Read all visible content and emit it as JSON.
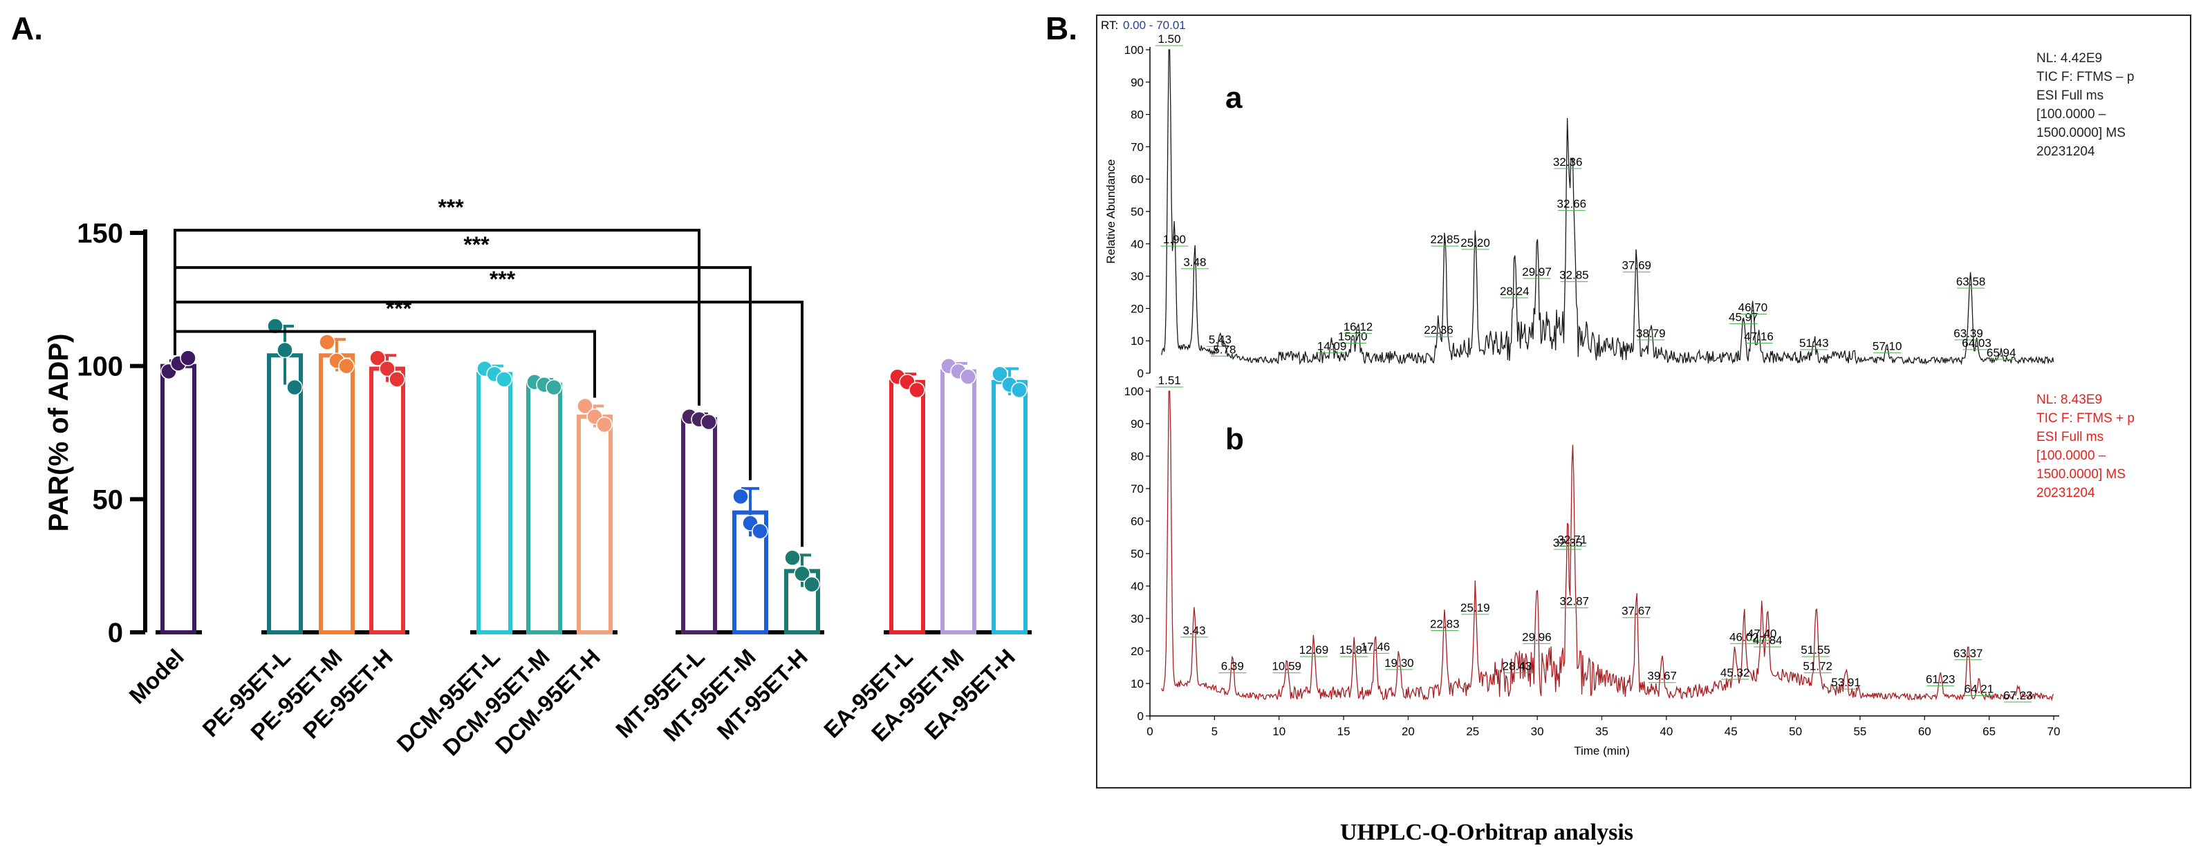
{
  "panel_a_label": "A.",
  "panel_b_label": "B.",
  "caption": "UHPLC-Q-Orbitrap analysis",
  "chart_data": [
    {
      "type": "bar",
      "title": "",
      "xlabel": "",
      "ylabel": "PAR(% of ADP)",
      "ylim": [
        0,
        150
      ],
      "yticks": [
        0,
        50,
        100,
        150
      ],
      "categories": [
        "Model",
        "PE-95ET-L",
        "PE-95ET-M",
        "PE-95ET-H",
        "DCM-95ET-L",
        "DCM-95ET-M",
        "DCM-95ET-H",
        "MT-95ET-L",
        "MT-95ET-M",
        "MT-95ET-H",
        "EA-95ET-L",
        "EA-95ET-M",
        "EA-95ET-H"
      ],
      "values": [
        100,
        104,
        104,
        99,
        97,
        93,
        81,
        80,
        45,
        23,
        94,
        98,
        94
      ],
      "errors": [
        2,
        11,
        6,
        5,
        3,
        2,
        4,
        2,
        9,
        6,
        3,
        3,
        5
      ],
      "points": [
        [
          98,
          101,
          103
        ],
        [
          115,
          106,
          92
        ],
        [
          109,
          102,
          100
        ],
        [
          103,
          99,
          95
        ],
        [
          99,
          97,
          95
        ],
        [
          94,
          93,
          92
        ],
        [
          85,
          81,
          78
        ],
        [
          81,
          80,
          79
        ],
        [
          51,
          41,
          38
        ],
        [
          28,
          22,
          18
        ],
        [
          96,
          94,
          91
        ],
        [
          100,
          98,
          96
        ],
        [
          97,
          93,
          91
        ]
      ],
      "colors": [
        "#3d1a5e",
        "#13797c",
        "#f0803a",
        "#e53535",
        "#2bc7d9",
        "#36aaa0",
        "#f4a07e",
        "#4a2566",
        "#1e5fd8",
        "#1b7b72",
        "#e8262e",
        "#b39ddd",
        "#2bb8de"
      ],
      "groups": [
        {
          "name": "PE",
          "members": [
            "PE-95ET-L",
            "PE-95ET-M",
            "PE-95ET-H"
          ]
        },
        {
          "name": "DCM",
          "members": [
            "DCM-95ET-L",
            "DCM-95ET-M",
            "DCM-95ET-H"
          ]
        },
        {
          "name": "MT",
          "members": [
            "MT-95ET-L",
            "MT-95ET-M",
            "MT-95ET-H"
          ]
        },
        {
          "name": "EA",
          "members": [
            "EA-95ET-L",
            "EA-95ET-M",
            "EA-95ET-H"
          ]
        }
      ],
      "significance": [
        {
          "from": "Model",
          "to": "MT-95ET-L",
          "label": "***",
          "level": 151
        },
        {
          "from": "Model",
          "to": "MT-95ET-M",
          "label": "***",
          "level": 137
        },
        {
          "from": "Model",
          "to": "MT-95ET-H",
          "label": "***",
          "level": 124
        },
        {
          "from": "Model",
          "to": "DCM-95ET-H",
          "label": "***",
          "level": 113
        }
      ]
    },
    {
      "type": "line",
      "title": "a",
      "rt_label": "RT:",
      "rt_range_text": "0.00 - 70.01",
      "ylabel": "Relative Abundance",
      "ylim": [
        0,
        100
      ],
      "xlim": [
        0,
        70
      ],
      "yticks": [
        0,
        10,
        20,
        30,
        40,
        50,
        60,
        70,
        80,
        90,
        100
      ],
      "info_lines": [
        "NL: 4.42E9",
        "TIC F: FTMS – p",
        "ESI Full ms",
        "[100.0000 –",
        "1500.0000] MS",
        "20231204"
      ],
      "info_color": "#222222",
      "line_color": "#1a1a1a",
      "peaks": [
        {
          "x": 1.5,
          "y": 100,
          "label": "1.50"
        },
        {
          "x": 1.9,
          "y": 38,
          "label": "1.90"
        },
        {
          "x": 3.48,
          "y": 31,
          "label": "3.48"
        },
        {
          "x": 5.43,
          "y": 7,
          "label": "5.43"
        },
        {
          "x": 5.78,
          "y": 4,
          "label": "5.78"
        },
        {
          "x": 15.7,
          "y": 8,
          "label": "15.70"
        },
        {
          "x": 14.09,
          "y": 5,
          "label": "14.09"
        },
        {
          "x": 16.12,
          "y": 11,
          "label": "16.12"
        },
        {
          "x": 22.36,
          "y": 10,
          "label": "22.36"
        },
        {
          "x": 22.85,
          "y": 38,
          "label": "22.85"
        },
        {
          "x": 25.2,
          "y": 37,
          "label": "25.20"
        },
        {
          "x": 28.24,
          "y": 22,
          "label": "28.24"
        },
        {
          "x": 29.97,
          "y": 28,
          "label": "29.97"
        },
        {
          "x": 32.36,
          "y": 62,
          "label": "32.36"
        },
        {
          "x": 32.66,
          "y": 49,
          "label": "32.66"
        },
        {
          "x": 32.85,
          "y": 27,
          "label": "32.85"
        },
        {
          "x": 37.69,
          "y": 30,
          "label": "37.69"
        },
        {
          "x": 38.79,
          "y": 9,
          "label": "38.79"
        },
        {
          "x": 45.97,
          "y": 14,
          "label": "45.97"
        },
        {
          "x": 46.7,
          "y": 17,
          "label": "46.70"
        },
        {
          "x": 47.16,
          "y": 8,
          "label": "47.16"
        },
        {
          "x": 51.43,
          "y": 6,
          "label": "51.43"
        },
        {
          "x": 57.1,
          "y": 5,
          "label": "57.10"
        },
        {
          "x": 63.39,
          "y": 9,
          "label": "63.39"
        },
        {
          "x": 63.58,
          "y": 25,
          "label": "63.58"
        },
        {
          "x": 64.03,
          "y": 6,
          "label": "64.03"
        },
        {
          "x": 65.94,
          "y": 3,
          "label": "65.94"
        }
      ]
    },
    {
      "type": "line",
      "title": "b",
      "xlabel": "Time (min)",
      "ylim": [
        0,
        100
      ],
      "xlim": [
        0,
        70
      ],
      "yticks": [
        0,
        10,
        20,
        30,
        40,
        50,
        60,
        70,
        80,
        90,
        100
      ],
      "xticks": [
        0,
        5,
        10,
        15,
        20,
        25,
        30,
        35,
        40,
        45,
        50,
        55,
        60,
        65,
        70
      ],
      "info_lines": [
        "NL: 8.43E9",
        "TIC F: FTMS + p",
        "ESI Full ms",
        "[100.0000 –",
        "1500.0000] MS",
        "20231204"
      ],
      "info_color": "#e8201c",
      "line_color": "#a81e22",
      "peaks": [
        {
          "x": 1.51,
          "y": 100,
          "label": "1.51"
        },
        {
          "x": 3.43,
          "y": 23,
          "label": "3.43"
        },
        {
          "x": 6.39,
          "y": 12,
          "label": "6.39"
        },
        {
          "x": 10.59,
          "y": 12,
          "label": "10.59"
        },
        {
          "x": 12.69,
          "y": 17,
          "label": "12.69"
        },
        {
          "x": 15.81,
          "y": 17,
          "label": "15.81"
        },
        {
          "x": 17.46,
          "y": 18,
          "label": "17.46"
        },
        {
          "x": 19.3,
          "y": 13,
          "label": "19.30"
        },
        {
          "x": 22.83,
          "y": 25,
          "label": "22.83"
        },
        {
          "x": 25.19,
          "y": 30,
          "label": "25.19"
        },
        {
          "x": 28.43,
          "y": 12,
          "label": "28.43"
        },
        {
          "x": 29.96,
          "y": 21,
          "label": "29.96"
        },
        {
          "x": 32.35,
          "y": 50,
          "label": "32.35"
        },
        {
          "x": 32.71,
          "y": 51,
          "label": "32.71"
        },
        {
          "x": 32.87,
          "y": 32,
          "label": "32.87"
        },
        {
          "x": 37.67,
          "y": 29,
          "label": "37.67"
        },
        {
          "x": 39.67,
          "y": 9,
          "label": "39.67"
        },
        {
          "x": 45.32,
          "y": 10,
          "label": "45.32"
        },
        {
          "x": 46.02,
          "y": 21,
          "label": "46.02"
        },
        {
          "x": 47.4,
          "y": 22,
          "label": "47.40"
        },
        {
          "x": 47.84,
          "y": 20,
          "label": "47.84"
        },
        {
          "x": 51.55,
          "y": 17,
          "label": "51.55"
        },
        {
          "x": 51.72,
          "y": 12,
          "label": "51.72"
        },
        {
          "x": 53.91,
          "y": 7,
          "label": "53.91"
        },
        {
          "x": 61.23,
          "y": 8,
          "label": "61.23"
        },
        {
          "x": 63.37,
          "y": 16,
          "label": "63.37"
        },
        {
          "x": 64.21,
          "y": 5,
          "label": "64.21"
        },
        {
          "x": 67.23,
          "y": 3,
          "label": "67.23"
        }
      ]
    }
  ]
}
